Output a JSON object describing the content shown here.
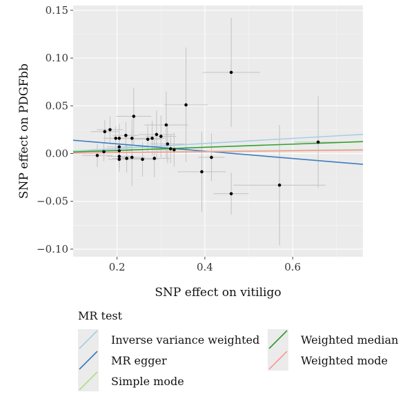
{
  "chart_data": {
    "type": "scatter",
    "xlabel": "SNP effect on vitiligo",
    "ylabel": "SNP effect on PDGFbb",
    "xlim": [
      0.1,
      0.76
    ],
    "ylim": [
      -0.108,
      0.155
    ],
    "xticks": [
      {
        "value": 0.2,
        "label": "0.2"
      },
      {
        "value": 0.4,
        "label": "0.4"
      },
      {
        "value": 0.6,
        "label": "0.6"
      }
    ],
    "yticks": [
      {
        "value": 0.15,
        "label": "0.15"
      },
      {
        "value": 0.1,
        "label": "0.10"
      },
      {
        "value": 0.05,
        "label": "0.05"
      },
      {
        "value": 0.0,
        "label": "0.00"
      },
      {
        "value": -0.05,
        "label": "−0.05"
      },
      {
        "value": -0.1,
        "label": "−0.10"
      }
    ],
    "grid": true,
    "background": "#ebebeb",
    "points": [
      {
        "x": 0.155,
        "y": -0.002,
        "xerr": 0.035,
        "yerr": 0.012
      },
      {
        "x": 0.17,
        "y": 0.002,
        "xerr": 0.03,
        "yerr": 0.01
      },
      {
        "x": 0.172,
        "y": 0.023,
        "xerr": 0.032,
        "yerr": 0.012
      },
      {
        "x": 0.184,
        "y": 0.025,
        "xerr": 0.03,
        "yerr": 0.014
      },
      {
        "x": 0.197,
        "y": 0.016,
        "xerr": 0.028,
        "yerr": 0.013
      },
      {
        "x": 0.205,
        "y": 0.016,
        "xerr": 0.03,
        "yerr": 0.015
      },
      {
        "x": 0.205,
        "y": 0.007,
        "xerr": 0.028,
        "yerr": 0.014
      },
      {
        "x": 0.205,
        "y": 0.003,
        "xerr": 0.03,
        "yerr": 0.013
      },
      {
        "x": 0.205,
        "y": -0.003,
        "xerr": 0.028,
        "yerr": 0.012
      },
      {
        "x": 0.205,
        "y": -0.006,
        "xerr": 0.025,
        "yerr": 0.013
      },
      {
        "x": 0.22,
        "y": 0.019,
        "xerr": 0.03,
        "yerr": 0.014
      },
      {
        "x": 0.222,
        "y": -0.005,
        "xerr": 0.032,
        "yerr": 0.015
      },
      {
        "x": 0.234,
        "y": 0.016,
        "xerr": 0.03,
        "yerr": 0.02
      },
      {
        "x": 0.234,
        "y": -0.004,
        "xerr": 0.03,
        "yerr": 0.03
      },
      {
        "x": 0.238,
        "y": 0.039,
        "xerr": 0.04,
        "yerr": 0.03
      },
      {
        "x": 0.258,
        "y": -0.006,
        "xerr": 0.035,
        "yerr": 0.018
      },
      {
        "x": 0.27,
        "y": 0.015,
        "xerr": 0.03,
        "yerr": 0.014
      },
      {
        "x": 0.28,
        "y": 0.016,
        "xerr": 0.03,
        "yerr": 0.018
      },
      {
        "x": 0.285,
        "y": -0.005,
        "xerr": 0.035,
        "yerr": 0.02
      },
      {
        "x": 0.29,
        "y": 0.02,
        "xerr": 0.04,
        "yerr": 0.025
      },
      {
        "x": 0.3,
        "y": 0.018,
        "xerr": 0.035,
        "yerr": 0.022
      },
      {
        "x": 0.312,
        "y": 0.03,
        "xerr": 0.05,
        "yerr": 0.035
      },
      {
        "x": 0.315,
        "y": 0.01,
        "xerr": 0.04,
        "yerr": 0.02
      },
      {
        "x": 0.322,
        "y": 0.005,
        "xerr": 0.04,
        "yerr": 0.015
      },
      {
        "x": 0.33,
        "y": 0.004,
        "xerr": 0.04,
        "yerr": 0.018
      },
      {
        "x": 0.357,
        "y": 0.051,
        "xerr": 0.05,
        "yerr": 0.06
      },
      {
        "x": 0.393,
        "y": -0.019,
        "xerr": 0.055,
        "yerr": 0.042
      },
      {
        "x": 0.415,
        "y": -0.004,
        "xerr": 0.03,
        "yerr": 0.025
      },
      {
        "x": 0.46,
        "y": 0.085,
        "xerr": 0.065,
        "yerr": 0.057
      },
      {
        "x": 0.46,
        "y": -0.042,
        "xerr": 0.04,
        "yerr": 0.022
      },
      {
        "x": 0.57,
        "y": -0.033,
        "xerr": 0.105,
        "yerr": 0.063
      },
      {
        "x": 0.658,
        "y": 0.012,
        "xerr": 0.055,
        "yerr": 0.048
      }
    ],
    "lines": [
      {
        "name": "Inverse variance weighted",
        "color": "#a6cee3",
        "intercept": 0.0,
        "slope": 0.0265
      },
      {
        "name": "MR egger",
        "color": "#3a7dbf",
        "intercept": 0.0178,
        "slope": -0.0382
      },
      {
        "name": "Simple mode",
        "color": "#b2df8a",
        "intercept": 0.0,
        "slope": 0.0055
      },
      {
        "name": "Weighted median",
        "color": "#33a02c",
        "intercept": 0.0,
        "slope": 0.0165
      },
      {
        "name": "Weighted mode",
        "color": "#fb9a99",
        "intercept": 0.0,
        "slope": 0.0048
      }
    ]
  },
  "legend": {
    "title": "MR test",
    "items": [
      {
        "label": "Inverse variance weighted",
        "color": "#a6cee3"
      },
      {
        "label": "MR egger",
        "color": "#3a7dbf"
      },
      {
        "label": "Simple mode",
        "color": "#b2df8a"
      },
      {
        "label": "Weighted median",
        "color": "#33a02c"
      },
      {
        "label": "Weighted mode",
        "color": "#fb9a99"
      }
    ]
  }
}
